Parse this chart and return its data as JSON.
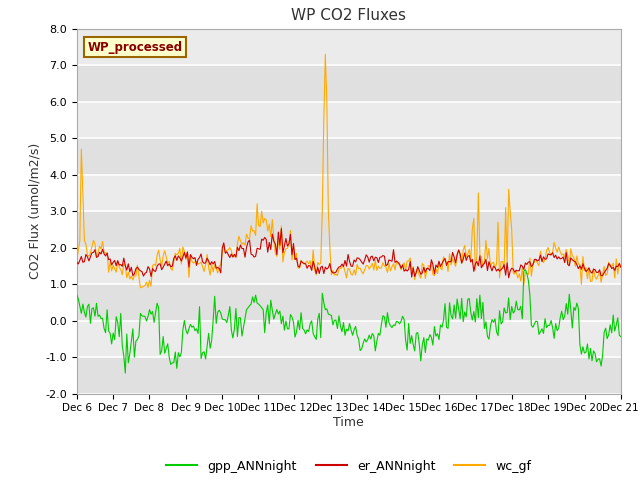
{
  "title": "WP CO2 Fluxes",
  "xlabel": "Time",
  "ylabel": "CO2 Flux (umol/m2/s)",
  "ylim": [
    -2.0,
    8.0
  ],
  "yticks": [
    -2.0,
    -1.0,
    0.0,
    1.0,
    2.0,
    3.0,
    4.0,
    5.0,
    6.0,
    7.0,
    8.0
  ],
  "xlim": [
    0,
    360
  ],
  "x_tick_positions": [
    0,
    24,
    48,
    72,
    96,
    120,
    144,
    168,
    192,
    216,
    240,
    264,
    288,
    312,
    336,
    360
  ],
  "x_tick_labels": [
    "Dec 6",
    "Dec 7",
    "Dec 8",
    "Dec 9",
    "Dec 10",
    "Dec 11",
    "Dec 12",
    "Dec 13",
    "Dec 14",
    "Dec 15",
    "Dec 16",
    "Dec 17",
    "Dec 18",
    "Dec 19",
    "Dec 20",
    "Dec 21"
  ],
  "color_gpp": "#00cc00",
  "color_er": "#cc0000",
  "color_wc": "#ffaa00",
  "legend_labels": [
    "gpp_ANNnight",
    "er_ANNnight",
    "wc_gf"
  ],
  "annotation_text": "WP_processed",
  "background_color": "#e8e8e8",
  "grid_color": "#ffffff",
  "title_fontsize": 11,
  "tick_fontsize": 8,
  "label_fontsize": 9,
  "legend_fontsize": 9,
  "seed": 42
}
